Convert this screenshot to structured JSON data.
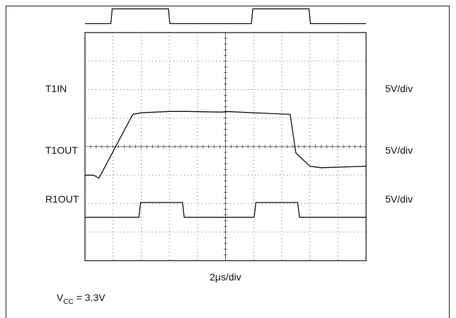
{
  "chart_data": {
    "type": "line",
    "x_axis_label": "2μs/div",
    "divisions": {
      "x": 10,
      "y": 8
    },
    "grid": "dotted",
    "note": {
      "prefix": "V",
      "subscript": "CC",
      "rest": " = 3.3V"
    },
    "x": [
      0,
      0.46,
      0.5,
      2.55,
      2.6,
      5.06,
      5.1,
      7.15,
      7.2,
      9.64,
      9.7,
      10
    ],
    "traces": [
      {
        "name": "T1IN",
        "scale": "5V/div",
        "x": [
          0,
          0.92,
          0.97,
          2.97,
          3.02,
          5.92,
          5.97,
          7.97,
          8.02,
          10
        ],
        "divs": [
          5.6,
          5.6,
          6.6,
          6.6,
          5.6,
          5.6,
          6.6,
          6.6,
          5.6,
          5.6
        ]
      },
      {
        "name": "T1OUT",
        "scale": "5V/div",
        "x": [
          0,
          0.3,
          0.5,
          1.7,
          2.0,
          3.0,
          3.6,
          4.9,
          5.0,
          6.0,
          7.3,
          7.5,
          8.0,
          8.4,
          10
        ],
        "divs": [
          0,
          0,
          -0.2,
          4.1,
          4.2,
          4.3,
          4.3,
          4.25,
          4.3,
          4.2,
          4.1,
          1.5,
          0.6,
          0.5,
          0.6
        ]
      },
      {
        "name": "R1OUT",
        "scale": "5V/div",
        "x": [
          0,
          1.92,
          1.98,
          3.47,
          3.53,
          6.02,
          6.08,
          7.57,
          7.63,
          10
        ],
        "divs": [
          1.0,
          1.0,
          2.0,
          2.0,
          1.0,
          1.0,
          2.0,
          2.0,
          1.0,
          1.0
        ]
      }
    ]
  }
}
